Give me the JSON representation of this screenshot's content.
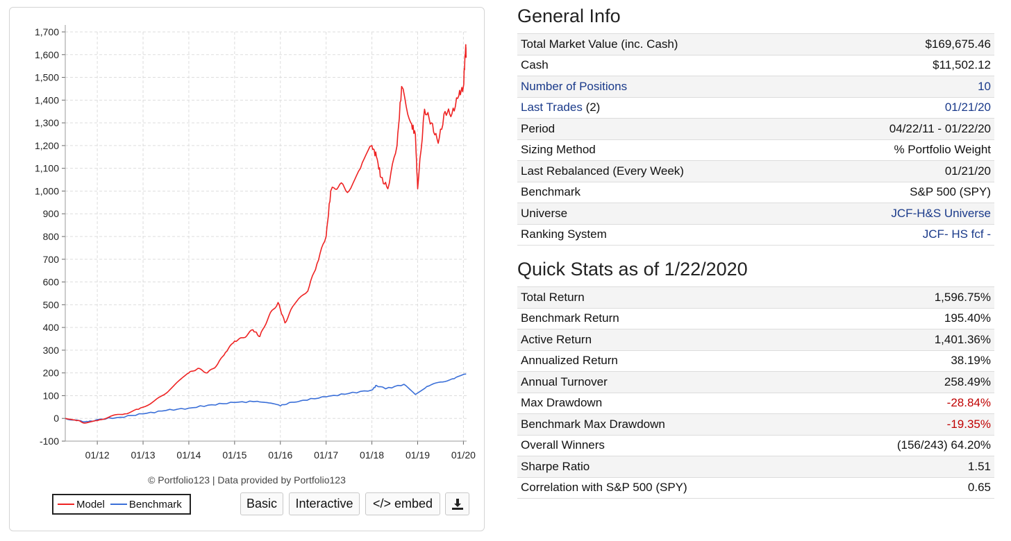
{
  "chart_data": {
    "type": "line",
    "x_ticks": [
      "01/12",
      "01/13",
      "01/14",
      "01/15",
      "01/16",
      "01/17",
      "01/18",
      "01/19",
      "01/20"
    ],
    "x_range": [
      "04/22/11",
      "01/22/20"
    ],
    "y_ticks": [
      "1,700",
      "1,600",
      "1,500",
      "1,400",
      "1,300",
      "1,200",
      "1,100",
      "1,000",
      "900",
      "800",
      "700",
      "600",
      "500",
      "400",
      "300",
      "200",
      "100",
      "0",
      "-100"
    ],
    "ylim": [
      -100,
      1700
    ],
    "grid": true,
    "legend_placement": "bottom-left",
    "series": [
      {
        "name": "Model",
        "color": "#ee2222",
        "points": [
          [
            2011.3,
            0
          ],
          [
            2011.55,
            -10
          ],
          [
            2011.75,
            -20
          ],
          [
            2012.0,
            -10
          ],
          [
            2012.3,
            10
          ],
          [
            2012.6,
            20
          ],
          [
            2012.9,
            40
          ],
          [
            2013.2,
            70
          ],
          [
            2013.5,
            110
          ],
          [
            2013.75,
            160
          ],
          [
            2014.0,
            200
          ],
          [
            2014.2,
            220
          ],
          [
            2014.4,
            200
          ],
          [
            2014.6,
            230
          ],
          [
            2014.8,
            290
          ],
          [
            2015.0,
            340
          ],
          [
            2015.2,
            355
          ],
          [
            2015.4,
            390
          ],
          [
            2015.55,
            360
          ],
          [
            2015.75,
            450
          ],
          [
            2015.95,
            510
          ],
          [
            2016.1,
            420
          ],
          [
            2016.3,
            500
          ],
          [
            2016.6,
            560
          ],
          [
            2016.8,
            680
          ],
          [
            2017.0,
            800
          ],
          [
            2017.1,
            1000
          ],
          [
            2017.3,
            1030
          ],
          [
            2017.5,
            1000
          ],
          [
            2017.75,
            1100
          ],
          [
            2018.0,
            1200
          ],
          [
            2018.1,
            1150
          ],
          [
            2018.2,
            1060
          ],
          [
            2018.35,
            1010
          ],
          [
            2018.55,
            1200
          ],
          [
            2018.65,
            1460
          ],
          [
            2018.85,
            1300
          ],
          [
            2018.95,
            1250
          ],
          [
            2019.0,
            1010
          ],
          [
            2019.15,
            1360
          ],
          [
            2019.3,
            1300
          ],
          [
            2019.45,
            1210
          ],
          [
            2019.6,
            1350
          ],
          [
            2019.75,
            1340
          ],
          [
            2019.9,
            1420
          ],
          [
            2020.0,
            1460
          ],
          [
            2020.05,
            1640
          ],
          [
            2020.06,
            1597
          ]
        ]
      },
      {
        "name": "Benchmark",
        "color": "#3a6fd8",
        "points": [
          [
            2011.3,
            0
          ],
          [
            2011.6,
            -10
          ],
          [
            2011.8,
            -15
          ],
          [
            2012.0,
            -5
          ],
          [
            2012.5,
            5
          ],
          [
            2013.0,
            20
          ],
          [
            2013.5,
            35
          ],
          [
            2014.0,
            45
          ],
          [
            2014.5,
            60
          ],
          [
            2015.0,
            70
          ],
          [
            2015.5,
            75
          ],
          [
            2015.75,
            68
          ],
          [
            2016.0,
            55
          ],
          [
            2016.2,
            70
          ],
          [
            2016.5,
            80
          ],
          [
            2017.0,
            95
          ],
          [
            2017.5,
            110
          ],
          [
            2018.0,
            125
          ],
          [
            2018.1,
            145
          ],
          [
            2018.3,
            130
          ],
          [
            2018.7,
            150
          ],
          [
            2018.95,
            105
          ],
          [
            2019.2,
            140
          ],
          [
            2019.5,
            160
          ],
          [
            2019.8,
            175
          ],
          [
            2020.06,
            195
          ]
        ]
      }
    ]
  },
  "credit": "© Portfolio123 | Data provided by Portfolio123",
  "legend": {
    "model": "Model",
    "benchmark": "Benchmark"
  },
  "buttons": {
    "basic": "Basic",
    "interactive": "Interactive",
    "embed": "</> embed",
    "download_icon": "download-icon"
  },
  "general_info": {
    "title": "General Info",
    "rows": [
      {
        "label": "Total Market Value (inc. Cash)",
        "value": "$169,675.46"
      },
      {
        "label": "Cash",
        "value": "$11,502.12"
      },
      {
        "label": "Number of Positions",
        "value": "10"
      },
      {
        "label": "Last Trades",
        "label_suffix": "(2)",
        "value": "01/21/20"
      },
      {
        "label": "Period",
        "value": "04/22/11 - 01/22/20"
      },
      {
        "label": "Sizing Method",
        "value": "% Portfolio Weight"
      },
      {
        "label": "Last Rebalanced (Every Week)",
        "value": "01/21/20"
      },
      {
        "label": "Benchmark",
        "value": "S&P 500 (SPY)"
      },
      {
        "label": "Universe",
        "value": "JCF-H&S Universe"
      },
      {
        "label": "Ranking System",
        "value": "JCF- HS fcf -"
      }
    ]
  },
  "quick_stats": {
    "title": "Quick Stats as of 1/22/2020",
    "rows": [
      {
        "label": "Total Return",
        "value": "1,596.75%"
      },
      {
        "label": "Benchmark Return",
        "value": "195.40%"
      },
      {
        "label": "Active Return",
        "value": "1,401.36%"
      },
      {
        "label": "Annualized Return",
        "value": "38.19%"
      },
      {
        "label": "Annual Turnover",
        "value": "258.49%"
      },
      {
        "label": "Max Drawdown",
        "value": "-28.84%"
      },
      {
        "label": "Benchmark Max Drawdown",
        "value": "-19.35%"
      },
      {
        "label": "Overall Winners",
        "value": "(156/243) 64.20%"
      },
      {
        "label": "Sharpe Ratio",
        "value": "1.51"
      },
      {
        "label": "Correlation with S&P 500 (SPY)",
        "value": "0.65"
      }
    ]
  }
}
